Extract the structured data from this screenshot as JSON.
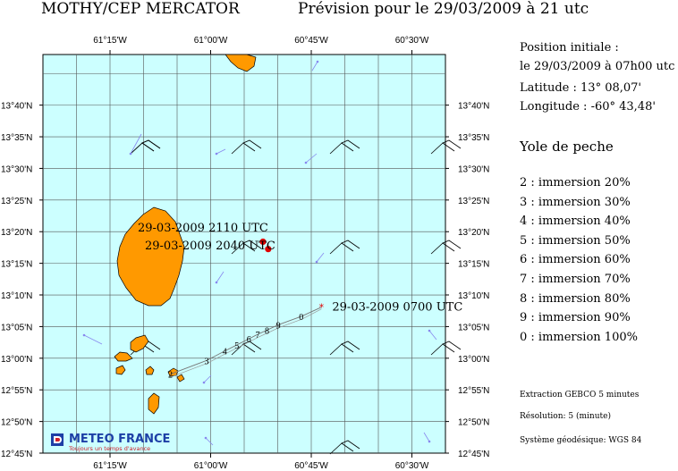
{
  "header": {
    "left_title": "MOTHY/CEP MERCATOR",
    "right_title": "Prévision pour le 29/03/2009 à 21 utc"
  },
  "info": {
    "line1": "Position initiale :",
    "line2": "le 29/03/2009 à 07h00 utc",
    "latitude": "Latitude : 13° 08,07'",
    "longitude": "Longitude : -60° 43,48'",
    "object_type": "Yole de peche"
  },
  "legend": [
    {
      "code": "2",
      "text": "2 : immersion  20%"
    },
    {
      "code": "3",
      "text": "3 : immersion  30%"
    },
    {
      "code": "4",
      "text": "4 : immersion  40%"
    },
    {
      "code": "5",
      "text": "5 : immersion  50%"
    },
    {
      "code": "6",
      "text": "6 : immersion  60%"
    },
    {
      "code": "7",
      "text": "7 : immersion  70%"
    },
    {
      "code": "8",
      "text": "8 : immersion  80%"
    },
    {
      "code": "9",
      "text": "9 : immersion  90%"
    },
    {
      "code": "0",
      "text": "0 : immersion 100%"
    }
  ],
  "footer": {
    "extraction": "Extraction GEBCO 5 minutes",
    "resolution": "Résolution: 5 (minute)",
    "geodesic": "Système géodésique: WGS 84"
  },
  "logo": {
    "name": "METEO FRANCE",
    "slogan": "Toujours un temps d'avance"
  },
  "map": {
    "lon_range": [
      -61.4167,
      -60.4167
    ],
    "lat_range": [
      12.75,
      13.8
    ],
    "lon_ticks": [
      {
        "value": -61.25,
        "label": "61°15'W"
      },
      {
        "value": -61.0,
        "label": "61°00'W"
      },
      {
        "value": -60.75,
        "label": "60°45'W"
      },
      {
        "value": -60.5,
        "label": "60°30'W"
      }
    ],
    "lat_ticks": [
      {
        "value": 13.6667,
        "label": "13°40'N"
      },
      {
        "value": 13.5833,
        "label": "13°35'N"
      },
      {
        "value": 13.5,
        "label": "13°30'N"
      },
      {
        "value": 13.4167,
        "label": "13°25'N"
      },
      {
        "value": 13.3333,
        "label": "13°20'N"
      },
      {
        "value": 13.25,
        "label": "13°15'N"
      },
      {
        "value": 13.1667,
        "label": "13°10'N"
      },
      {
        "value": 13.0833,
        "label": "13°05'N"
      },
      {
        "value": 13.0,
        "label": "13°00'N"
      },
      {
        "value": 12.9167,
        "label": "12°55'N"
      },
      {
        "value": 12.8333,
        "label": "12°50'N"
      },
      {
        "value": 12.75,
        "label": "12°45'N"
      }
    ],
    "sea_color": "#ccffff",
    "land_color": "#ff9900",
    "grid_color": "#555555",
    "start_point": {
      "lon": -60.7247,
      "lat": 13.1345,
      "label": "29-03-2009 0700 UTC"
    },
    "forecast_points": [
      {
        "lon": -60.87,
        "lat": 13.3068,
        "label": "29-03-2009 2110 UTC"
      },
      {
        "lon": -60.857,
        "lat": 13.2875,
        "label": "29-03-2009 2040 UTC"
      }
    ],
    "track": [
      {
        "code": "0",
        "lon": -60.775,
        "lat": 13.11
      },
      {
        "code": "9",
        "lon": -60.832,
        "lat": 13.088
      },
      {
        "code": "8",
        "lon": -60.86,
        "lat": 13.074
      },
      {
        "code": "7",
        "lon": -60.883,
        "lat": 13.063
      },
      {
        "code": "6",
        "lon": -60.905,
        "lat": 13.051
      },
      {
        "code": "5",
        "lon": -60.935,
        "lat": 13.035
      },
      {
        "code": "4",
        "lon": -60.965,
        "lat": 13.019
      },
      {
        "code": "3",
        "lon": -61.01,
        "lat": 12.994
      },
      {
        "code": "2",
        "lon": -61.1,
        "lat": 12.958
      }
    ]
  }
}
